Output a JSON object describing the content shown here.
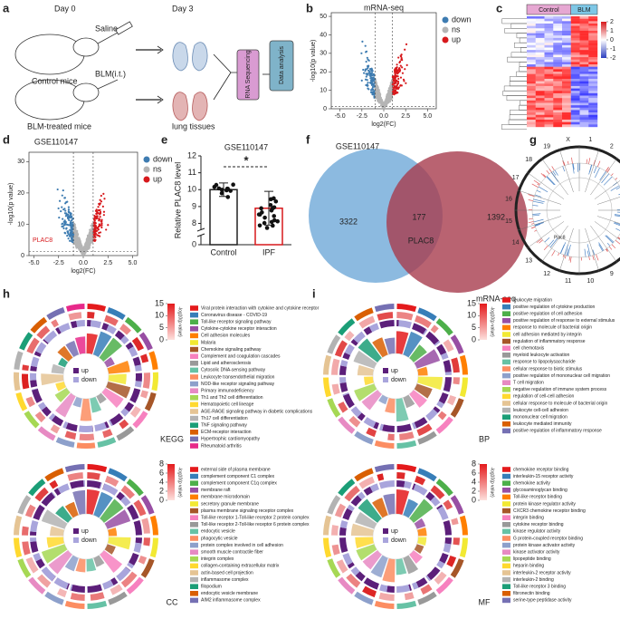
{
  "chart_data": {
    "type": "bar",
    "title": "GSE110147",
    "ylabel": "Relative PLAC8 level",
    "categories": [
      "Control",
      "IPF"
    ],
    "values": [
      10,
      8.9
    ],
    "errors": [
      0.4,
      1.0
    ],
    "colors": [
      "#222222",
      "#d7191c"
    ],
    "ylim": [
      0,
      12
    ],
    "axis_break": [
      1,
      7.6
    ],
    "yticks": [
      0,
      8,
      9,
      10,
      11,
      12
    ],
    "annotation": "*"
  },
  "panels": {
    "a": {
      "letter": "a",
      "day0": "Day 0",
      "day3": "Day 3",
      "saline": "Saline",
      "blm": "BLM(i.t.)",
      "control": "Control mice",
      "treated": "BLM-treated mice",
      "tissues": "lung tissues",
      "seq": "RNA Sequencing",
      "analysis": "Data analysis"
    },
    "b": {
      "letter": "b",
      "title": "mRNA-seq",
      "xlabel": "log2(FC)",
      "ylabel": "-log10(p value)",
      "xlim": [
        -6,
        6
      ],
      "ylim": [
        0,
        52
      ],
      "xticks": [
        {
          "value": -5,
          "label": "-5.0"
        },
        {
          "value": -2.5,
          "label": "-2.5"
        },
        {
          "value": 0,
          "label": "0.0"
        },
        {
          "value": 2.5,
          "label": "2.5"
        },
        {
          "value": 5,
          "label": "5.0"
        }
      ],
      "yticks": [
        0,
        10,
        20,
        30,
        40,
        50
      ],
      "legend": [
        "down",
        "ns",
        "up"
      ]
    },
    "c": {
      "letter": "c",
      "groups": [
        "Control",
        "BLM"
      ],
      "colorbar_ticks": [
        2,
        1,
        0,
        -1,
        -2
      ]
    },
    "d": {
      "letter": "d",
      "title": "GSE110147",
      "xlabel": "log2(FC)",
      "ylabel": "-log10(p value)",
      "annotation": "PLAC8",
      "xlim": [
        -5.5,
        5.5
      ],
      "ylim": [
        0,
        33
      ],
      "xticks": [
        {
          "value": -5,
          "label": "-5.0"
        },
        {
          "value": -2.5,
          "label": "-2.5"
        },
        {
          "value": 0,
          "label": "0.0"
        },
        {
          "value": 2.5,
          "label": "2.5"
        },
        {
          "value": 5,
          "label": "5.0"
        }
      ],
      "yticks": [
        0,
        10,
        20,
        30
      ],
      "legend": [
        "down",
        "ns",
        "up"
      ]
    },
    "e": {
      "letter": "e"
    },
    "f": {
      "letter": "f",
      "left": "GSE110147",
      "right": "mRNA-seq",
      "left_only": "3322",
      "both": "177",
      "right_only": "1392",
      "gene": "PLAC8"
    },
    "g": {
      "letter": "g",
      "gene": "Plac8",
      "chromosomes": [
        "1",
        "2",
        "3",
        "4",
        "5",
        "6",
        "7",
        "8",
        "9",
        "10",
        "11",
        "12",
        "13",
        "14",
        "15",
        "16",
        "17",
        "18",
        "19",
        "X"
      ]
    },
    "h": {
      "letter": "h",
      "plots": [
        {
          "name": "KEGG",
          "colorbar_label": "-log10(p value)",
          "colorbar_ticks": [
            15,
            10,
            5,
            0
          ],
          "legend": [
            "up",
            "down"
          ],
          "terms": [
            "Viral protein interaction with cytokine and cytokine receptor",
            "Coronavirus disease - COVID-19",
            "Toll-like receptor signaling pathway",
            "Cytokine-cytokine receptor interaction",
            "Cell adhesion molecules",
            "Malaria",
            "Chemokine signaling pathway",
            "Complement and coagulation cascades",
            "Lipid and atherosclerosis",
            "Cytosolic DNA-sensing pathway",
            "Leukocyte transendothelial migration",
            "NOD-like receptor signaling pathway",
            "Primary immunodeficiency",
            "Th1 and Th2 cell differentiation",
            "Hematopoietic cell lineage",
            "AGE-RAGE signaling pathway in diabetic complications",
            "Th17 cell differentiation",
            "TNF signaling pathway",
            "ECM-receptor interaction",
            "Hypertrophic cardiomyopathy",
            "Rheumatoid arthritis"
          ]
        },
        {
          "name": "CC",
          "colorbar_label": "-log10(p value)",
          "colorbar_ticks": [
            8,
            6,
            4,
            2,
            0
          ],
          "legend": [
            "up",
            "down"
          ],
          "terms": [
            "external side of plasma membrane",
            "complement component C1 complex",
            "complement component C1q complex",
            "membrane raft",
            "membrane microdomain",
            "secretory granule membrane",
            "plasma membrane signaling receptor complex",
            "Toll-like receptor 1-Toll-like receptor 2 protein complex",
            "Toll-like receptor 2-Toll-like receptor 6 protein complex",
            "endocytic vesicle",
            "phagocytic vesicle",
            "protein complex involved in cell adhesion",
            "smooth muscle contractile fiber",
            "integrin complex",
            "collagen-containing extracellular matrix",
            "actin-based cell projection",
            "inflammasome complex",
            "filopodium",
            "endocytic vesicle membrane",
            "AIM2 inflammasome complex"
          ]
        }
      ]
    },
    "i": {
      "letter": "i",
      "plots": [
        {
          "name": "BP",
          "colorbar_label": "-log10(p value)",
          "colorbar_ticks": [
            15,
            10,
            5,
            0
          ],
          "legend": [
            "up",
            "down"
          ],
          "terms": [
            "leukocyte migration",
            "positive regulation of cytokine production",
            "positive regulation of cell adhesion",
            "positive regulation of response to external stimulus",
            "response to molecule of bacterial origin",
            "cell adhesion mediated by integrin",
            "regulation of inflammatory response",
            "cell chemotaxis",
            "myeloid leukocyte activation",
            "response to lipopolysaccharide",
            "cellular response to biotic stimulus",
            "positive regulation of mononuclear cell migration",
            "T cell migration",
            "negative regulation of immune system process",
            "regulation of cell-cell adhesion",
            "cellular response to molecule of bacterial origin",
            "leukocyte cell-cell adhesion",
            "mononuclear cell migration",
            "leukocyte mediated immunity",
            "positive regulation of inflammatory response"
          ]
        },
        {
          "name": "MF",
          "colorbar_label": "-log10(p value)",
          "colorbar_ticks": [
            8,
            6,
            4,
            2,
            0
          ],
          "legend": [
            "up",
            "down"
          ],
          "terms": [
            "chemokine receptor binding",
            "interleukin-15 receptor activity",
            "chemokine activity",
            "glycosaminoglycan binding",
            "Toll-like receptor binding",
            "protein kinase regulator activity",
            "CXCR3 chemokine receptor binding",
            "integrin binding",
            "cytokine receptor binding",
            "kinase regulator activity",
            "G protein-coupled receptor binding",
            "protein kinase activator activity",
            "kinase activator activity",
            "lipopeptide binding",
            "heparin binding",
            "interleukin-2 receptor activity",
            "interleukin-2 binding",
            "Toll-like receptor 3 binding",
            "fibronectin binding",
            "serine-type peptidase activity"
          ]
        }
      ]
    }
  }
}
